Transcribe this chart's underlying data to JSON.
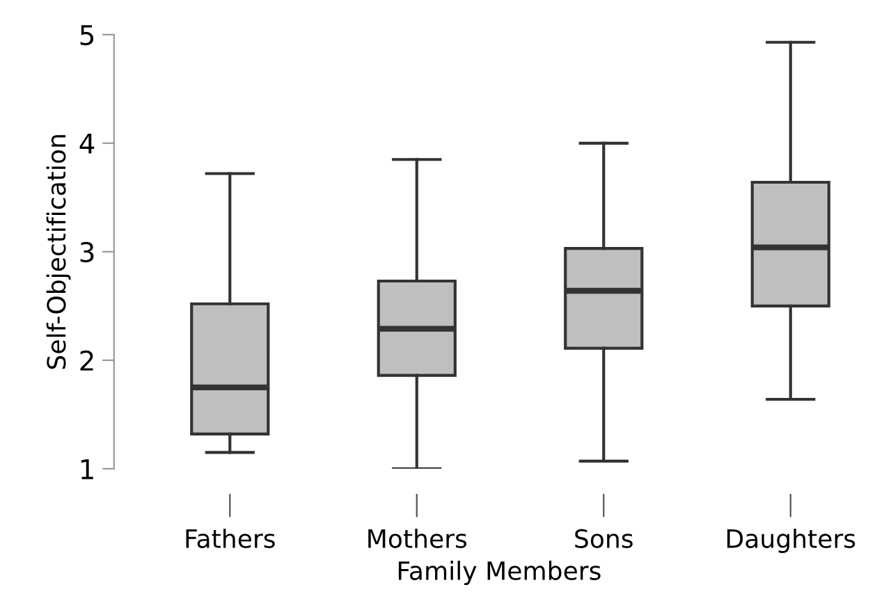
{
  "chart_data": {
    "type": "box",
    "xlabel": "Family Members",
    "ylabel": "Self-Objectification",
    "categories": [
      "Fathers",
      "Mothers",
      "Sons",
      "Daughters"
    ],
    "boxes": [
      {
        "low": 1.15,
        "q1": 1.32,
        "median": 1.75,
        "q3": 2.52,
        "high": 3.72
      },
      {
        "low": 1.0,
        "q1": 1.86,
        "median": 2.29,
        "q3": 2.73,
        "high": 3.85
      },
      {
        "low": 1.07,
        "q1": 2.11,
        "median": 2.64,
        "q3": 3.03,
        "high": 4.0
      },
      {
        "low": 1.64,
        "q1": 2.5,
        "median": 3.04,
        "q3": 3.64,
        "high": 4.93
      }
    ],
    "color": "#bfbfbf",
    "ylim": [
      1,
      5
    ],
    "yticks": [
      1,
      2,
      3,
      4,
      5
    ],
    "grid": false,
    "legend": false
  }
}
